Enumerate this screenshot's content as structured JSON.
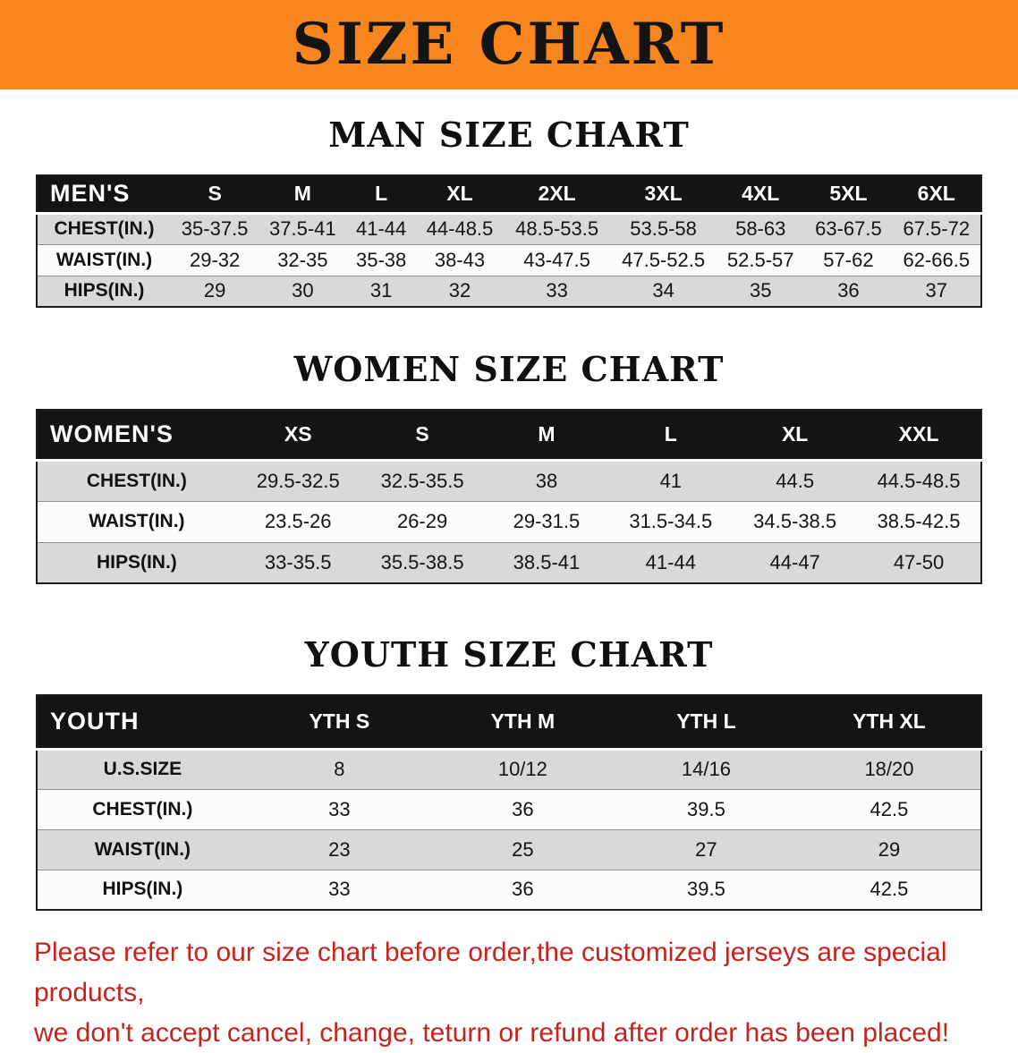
{
  "banner": {
    "title": "SIZE CHART"
  },
  "sections": [
    {
      "key": "men",
      "heading": "MAN SIZE CHART",
      "table": {
        "header": [
          "MEN'S",
          "S",
          "M",
          "L",
          "XL",
          "2XL",
          "3XL",
          "4XL",
          "5XL",
          "6XL"
        ],
        "rows": [
          [
            "CHEST(IN.)",
            "35-37.5",
            "37.5-41",
            "41-44",
            "44-48.5",
            "48.5-53.5",
            "53.5-58",
            "58-63",
            "63-67.5",
            "67.5-72"
          ],
          [
            "WAIST(IN.)",
            "29-32",
            "32-35",
            "35-38",
            "38-43",
            "43-47.5",
            "47.5-52.5",
            "52.5-57",
            "57-62",
            "62-66.5"
          ],
          [
            "HIPS(IN.)",
            "29",
            "30",
            "31",
            "32",
            "33",
            "34",
            "35",
            "36",
            "37"
          ]
        ]
      }
    },
    {
      "key": "women",
      "heading": "WOMEN SIZE CHART",
      "table": {
        "header": [
          "WOMEN'S",
          "XS",
          "S",
          "M",
          "L",
          "XL",
          "XXL"
        ],
        "rows": [
          [
            "CHEST(IN.)",
            "29.5-32.5",
            "32.5-35.5",
            "38",
            "41",
            "44.5",
            "44.5-48.5"
          ],
          [
            "WAIST(IN.)",
            "23.5-26",
            "26-29",
            "29-31.5",
            "31.5-34.5",
            "34.5-38.5",
            "38.5-42.5"
          ],
          [
            "HIPS(IN.)",
            "33-35.5",
            "35.5-38.5",
            "38.5-41",
            "41-44",
            "44-47",
            "47-50"
          ]
        ]
      }
    },
    {
      "key": "youth",
      "heading": "YOUTH SIZE CHART",
      "table": {
        "header": [
          "YOUTH",
          "YTH S",
          "YTH M",
          "YTH L",
          "YTH XL"
        ],
        "rows": [
          [
            "U.S.SIZE",
            "8",
            "10/12",
            "14/16",
            "18/20"
          ],
          [
            "CHEST(IN.)",
            "33",
            "36",
            "39.5",
            "42.5"
          ],
          [
            "WAIST(IN.)",
            "23",
            "25",
            "27",
            "29"
          ],
          [
            "HIPS(IN.)",
            "33",
            "36",
            "39.5",
            "42.5"
          ]
        ]
      }
    }
  ],
  "disclaimer": {
    "line1": "Please refer to our size chart before order,the customized jerseys are special products,",
    "line2": "we don't accept cancel, change, teturn or refund after order has been placed!"
  },
  "colors": {
    "banner_orange": "#f6861d",
    "table_header_black": "#141414",
    "row_gray": "#d9d9d9",
    "row_white": "#fcfcfc",
    "disclaimer_red": "#c2251f"
  }
}
